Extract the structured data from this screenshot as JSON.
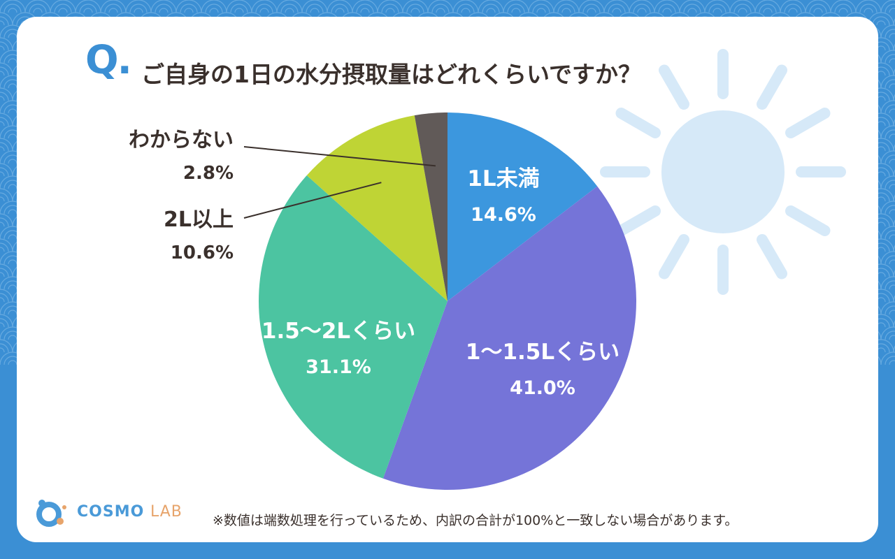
{
  "title": {
    "prefix": "Q.",
    "text": "ご自身の1日の水分摂取量はどれくらいですか？"
  },
  "chart_data": {
    "type": "pie",
    "slices": [
      {
        "label": "1L未満",
        "value": 14.6,
        "color": "#3c97de",
        "label_color": "#ffffff"
      },
      {
        "label": "1〜1.5Lくらい",
        "value": 41.0,
        "color": "#7574d8",
        "label_color": "#ffffff"
      },
      {
        "label": "1.5〜2Lくらい",
        "value": 31.1,
        "color": "#4cc4a1",
        "label_color": "#ffffff"
      },
      {
        "label": "2L以上",
        "value": 10.6,
        "color": "#bfd435",
        "label_color": "#3a302c"
      },
      {
        "label": "わからない",
        "value": 2.8,
        "color": "#615a58",
        "label_color": "#3a302c"
      }
    ],
    "value_suffix": "%"
  },
  "logo": {
    "name": "COSMO",
    "suffix": "LAB",
    "colors": {
      "primary": "#4a9ad8",
      "accent": "#e7a46b"
    }
  },
  "footnote": "※数値は端数処理を行っているため、内訳の合計が100%と一致しない場合があります。",
  "colors": {
    "background": "#3b8fd4",
    "card": "#ffffff",
    "text": "#3a302c",
    "sun": "#d6e9f8"
  }
}
